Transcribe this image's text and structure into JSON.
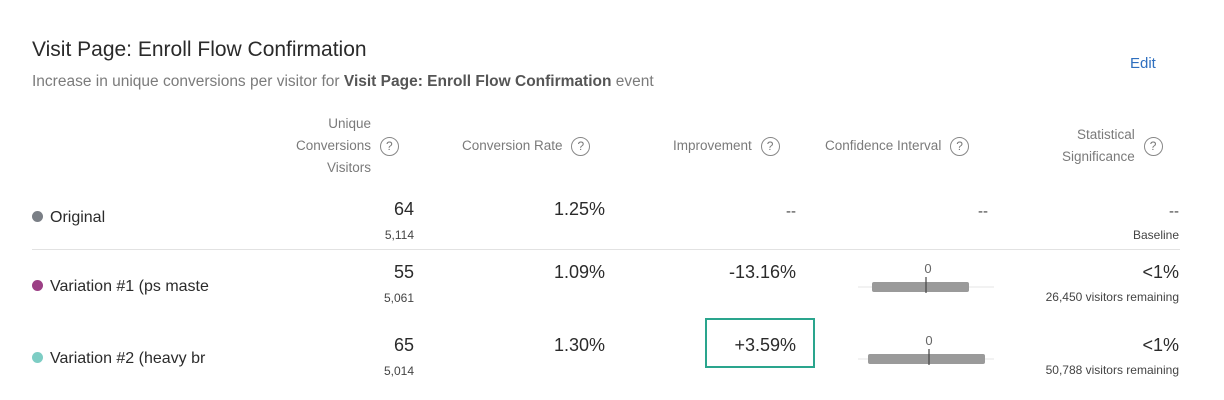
{
  "header": {
    "title": "Visit Page: Enroll Flow Confirmation",
    "subtitle_prefix": "Increase in unique conversions per visitor for",
    "subtitle_event": "Visit Page: Enroll Flow Confirmation",
    "subtitle_suffix": "event",
    "edit_label": "Edit"
  },
  "columns": {
    "conversions": [
      "Unique",
      "Conversions",
      "Visitors"
    ],
    "conversion_rate": "Conversion Rate",
    "improvement": "Improvement",
    "confidence_interval": "Confidence Interval",
    "significance": [
      "Statistical",
      "Significance"
    ],
    "help_glyph": "?"
  },
  "rows": [
    {
      "name": "Original",
      "dot_color": "#7a7f86",
      "conversions": "64",
      "visitors": "5,114",
      "conversion_rate": "1.25%",
      "improvement": "--",
      "confidence_interval": "--",
      "significance": "--",
      "significance_note": "Baseline"
    },
    {
      "name": "Variation #1 (ps maste",
      "dot_color": "#9c3f85",
      "conversions": "55",
      "visitors": "5,061",
      "conversion_rate": "1.09%",
      "improvement": "-13.16%",
      "ci_zero_label": "0",
      "significance": "<1%",
      "significance_note": "26,450 visitors remaining"
    },
    {
      "name": "Variation #2 (heavy br",
      "dot_color": "#7dcdc4",
      "conversions": "65",
      "visitors": "5,014",
      "conversion_rate": "1.30%",
      "improvement": "+3.59%",
      "ci_zero_label": "0",
      "significance": "<1%",
      "significance_note": "50,788 visitors remaining"
    }
  ]
}
